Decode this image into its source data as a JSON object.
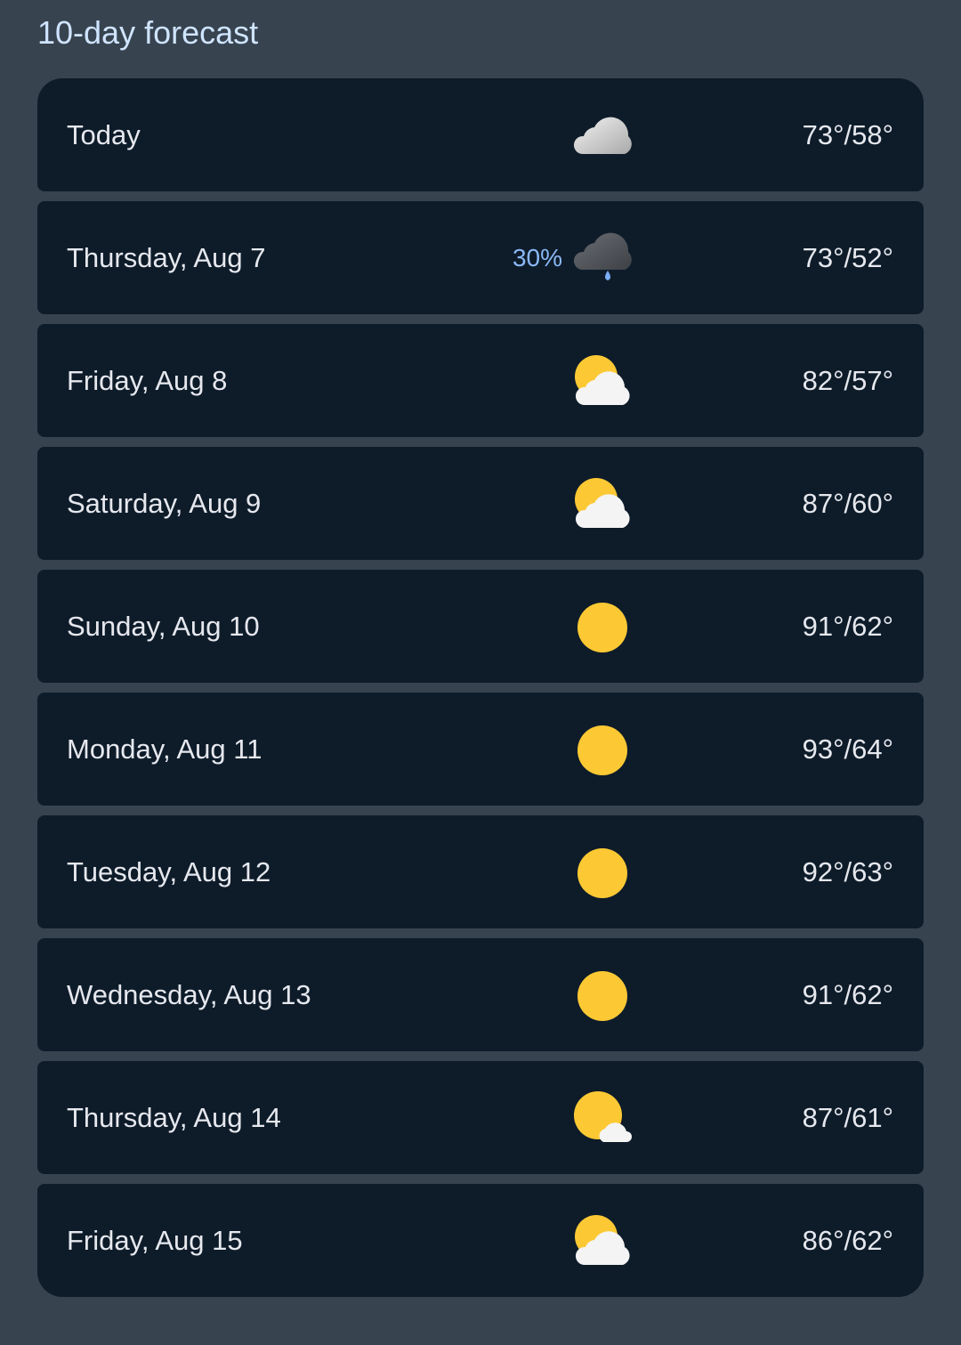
{
  "title": "10-day forecast",
  "colors": {
    "background": "#37434f",
    "card": "#0e1c2a",
    "title": "#cfe4ff",
    "precip": "#8ab8f5",
    "sun": "#fcc934",
    "cloud": "#e8e8e8",
    "dark_cloud": "#555a60",
    "drop": "#7aaef5"
  },
  "days": [
    {
      "day": "Today",
      "icon": "cloudy-icon",
      "precip": "",
      "temp": "73°/58°"
    },
    {
      "day": "Thursday, Aug 7",
      "icon": "rain-icon",
      "precip": "30%",
      "temp": "73°/52°"
    },
    {
      "day": "Friday, Aug 8",
      "icon": "partly-cloudy-icon",
      "precip": "",
      "temp": "82°/57°"
    },
    {
      "day": "Saturday, Aug 9",
      "icon": "partly-cloudy-icon",
      "precip": "",
      "temp": "87°/60°"
    },
    {
      "day": "Sunday, Aug 10",
      "icon": "sunny-icon",
      "precip": "",
      "temp": "91°/62°"
    },
    {
      "day": "Monday, Aug 11",
      "icon": "sunny-icon",
      "precip": "",
      "temp": "93°/64°"
    },
    {
      "day": "Tuesday, Aug 12",
      "icon": "sunny-icon",
      "precip": "",
      "temp": "92°/63°"
    },
    {
      "day": "Wednesday, Aug 13",
      "icon": "sunny-icon",
      "precip": "",
      "temp": "91°/62°"
    },
    {
      "day": "Thursday, Aug 14",
      "icon": "mostly-sunny-icon",
      "precip": "",
      "temp": "87°/61°"
    },
    {
      "day": "Friday, Aug 15",
      "icon": "partly-cloudy-icon",
      "precip": "",
      "temp": "86°/62°"
    }
  ]
}
